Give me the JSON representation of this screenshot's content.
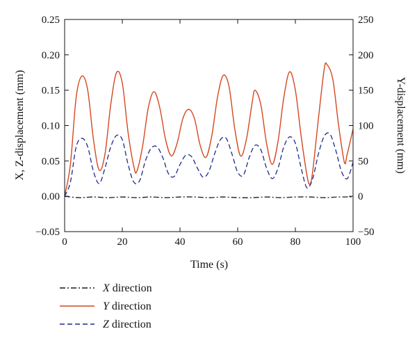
{
  "chart_data": {
    "type": "line",
    "xlabel": "Time (s)",
    "ylabel_left": "X, Z-displacement (mm)",
    "ylabel_right": "Y-displacement (mm)",
    "xlim": [
      0,
      100
    ],
    "ylim_left": [
      -0.05,
      0.25
    ],
    "ylim_right": [
      -50,
      250
    ],
    "x_ticks": [
      0,
      20,
      40,
      60,
      80,
      100
    ],
    "x_tick_labels": [
      "0",
      "20",
      "40",
      "60",
      "80",
      "100"
    ],
    "y_left_ticks": [
      -0.05,
      0.0,
      0.05,
      0.1,
      0.15,
      0.2,
      0.25
    ],
    "y_left_tick_labels": [
      "−0.05",
      "0.00",
      "0.05",
      "0.10",
      "0.15",
      "0.20",
      "0.25"
    ],
    "y_right_ticks": [
      -50,
      0,
      50,
      100,
      150,
      200,
      250
    ],
    "y_right_tick_labels": [
      "−50",
      "0",
      "50",
      "100",
      "150",
      "200",
      "250"
    ],
    "grid": false,
    "legend_placement": "below-left",
    "series": [
      {
        "name": "X direction",
        "legend_label": [
          "X",
          " direction"
        ],
        "axis": "left",
        "color": "#1a1a1a",
        "dash": "dashdot",
        "points": [
          [
            0,
            0.0
          ],
          [
            5,
            -0.002
          ],
          [
            10,
            -0.001
          ],
          [
            15,
            -0.002
          ],
          [
            20,
            -0.001
          ],
          [
            25,
            -0.002
          ],
          [
            30,
            -0.001
          ],
          [
            35,
            -0.002
          ],
          [
            40,
            -0.001
          ],
          [
            45,
            -0.001
          ],
          [
            50,
            -0.002
          ],
          [
            55,
            -0.001
          ],
          [
            60,
            -0.002
          ],
          [
            65,
            -0.002
          ],
          [
            70,
            -0.001
          ],
          [
            75,
            -0.002
          ],
          [
            80,
            -0.001
          ],
          [
            85,
            -0.001
          ],
          [
            90,
            -0.002
          ],
          [
            95,
            -0.001
          ],
          [
            100,
            -0.001
          ]
        ]
      },
      {
        "name": "Y direction",
        "legend_label": [
          "Y",
          " direction"
        ],
        "axis": "right",
        "color": "#d4471f",
        "dash": "solid",
        "points": [
          [
            0,
            0
          ],
          [
            2,
            45
          ],
          [
            4,
            140
          ],
          [
            6,
            170
          ],
          [
            8,
            150
          ],
          [
            10,
            80
          ],
          [
            12,
            37
          ],
          [
            14,
            60
          ],
          [
            16,
            130
          ],
          [
            18,
            175
          ],
          [
            20,
            160
          ],
          [
            22,
            90
          ],
          [
            24,
            42
          ],
          [
            25,
            35
          ],
          [
            27,
            70
          ],
          [
            29,
            125
          ],
          [
            31,
            148
          ],
          [
            33,
            125
          ],
          [
            35,
            80
          ],
          [
            37,
            57
          ],
          [
            39,
            75
          ],
          [
            41,
            110
          ],
          [
            43,
            123
          ],
          [
            45,
            110
          ],
          [
            47,
            72
          ],
          [
            49,
            55
          ],
          [
            51,
            85
          ],
          [
            53,
            140
          ],
          [
            55,
            171
          ],
          [
            57,
            155
          ],
          [
            59,
            95
          ],
          [
            61,
            57
          ],
          [
            63,
            80
          ],
          [
            65,
            132
          ],
          [
            66,
            150
          ],
          [
            68,
            130
          ],
          [
            70,
            75
          ],
          [
            72,
            45
          ],
          [
            74,
            78
          ],
          [
            76,
            140
          ],
          [
            78,
            176
          ],
          [
            80,
            150
          ],
          [
            82,
            85
          ],
          [
            84,
            30
          ],
          [
            85,
            17
          ],
          [
            86,
            35
          ],
          [
            88,
            110
          ],
          [
            90,
            180
          ],
          [
            91,
            186
          ],
          [
            93,
            165
          ],
          [
            95,
            100
          ],
          [
            97,
            48
          ],
          [
            98,
            60
          ],
          [
            100,
            95
          ]
        ]
      },
      {
        "name": "Z direction",
        "legend_label": [
          "Z",
          " direction"
        ],
        "axis": "left",
        "color": "#1f2a8a",
        "dash": "dashed",
        "points": [
          [
            0,
            0.0
          ],
          [
            2,
            0.02
          ],
          [
            4,
            0.07
          ],
          [
            6,
            0.082
          ],
          [
            8,
            0.07
          ],
          [
            10,
            0.035
          ],
          [
            12,
            0.018
          ],
          [
            14,
            0.04
          ],
          [
            16,
            0.07
          ],
          [
            18,
            0.086
          ],
          [
            20,
            0.08
          ],
          [
            22,
            0.045
          ],
          [
            24,
            0.02
          ],
          [
            26,
            0.022
          ],
          [
            28,
            0.05
          ],
          [
            30,
            0.068
          ],
          [
            32,
            0.07
          ],
          [
            34,
            0.055
          ],
          [
            36,
            0.032
          ],
          [
            38,
            0.028
          ],
          [
            40,
            0.045
          ],
          [
            42,
            0.058
          ],
          [
            44,
            0.056
          ],
          [
            46,
            0.04
          ],
          [
            48,
            0.027
          ],
          [
            50,
            0.035
          ],
          [
            52,
            0.06
          ],
          [
            54,
            0.08
          ],
          [
            56,
            0.082
          ],
          [
            58,
            0.06
          ],
          [
            60,
            0.034
          ],
          [
            62,
            0.03
          ],
          [
            64,
            0.055
          ],
          [
            66,
            0.072
          ],
          [
            68,
            0.066
          ],
          [
            70,
            0.04
          ],
          [
            72,
            0.025
          ],
          [
            74,
            0.04
          ],
          [
            76,
            0.07
          ],
          [
            78,
            0.084
          ],
          [
            80,
            0.075
          ],
          [
            82,
            0.04
          ],
          [
            84,
            0.012
          ],
          [
            86,
            0.025
          ],
          [
            88,
            0.06
          ],
          [
            90,
            0.085
          ],
          [
            92,
            0.088
          ],
          [
            94,
            0.065
          ],
          [
            96,
            0.035
          ],
          [
            98,
            0.025
          ],
          [
            100,
            0.048
          ]
        ]
      }
    ]
  }
}
